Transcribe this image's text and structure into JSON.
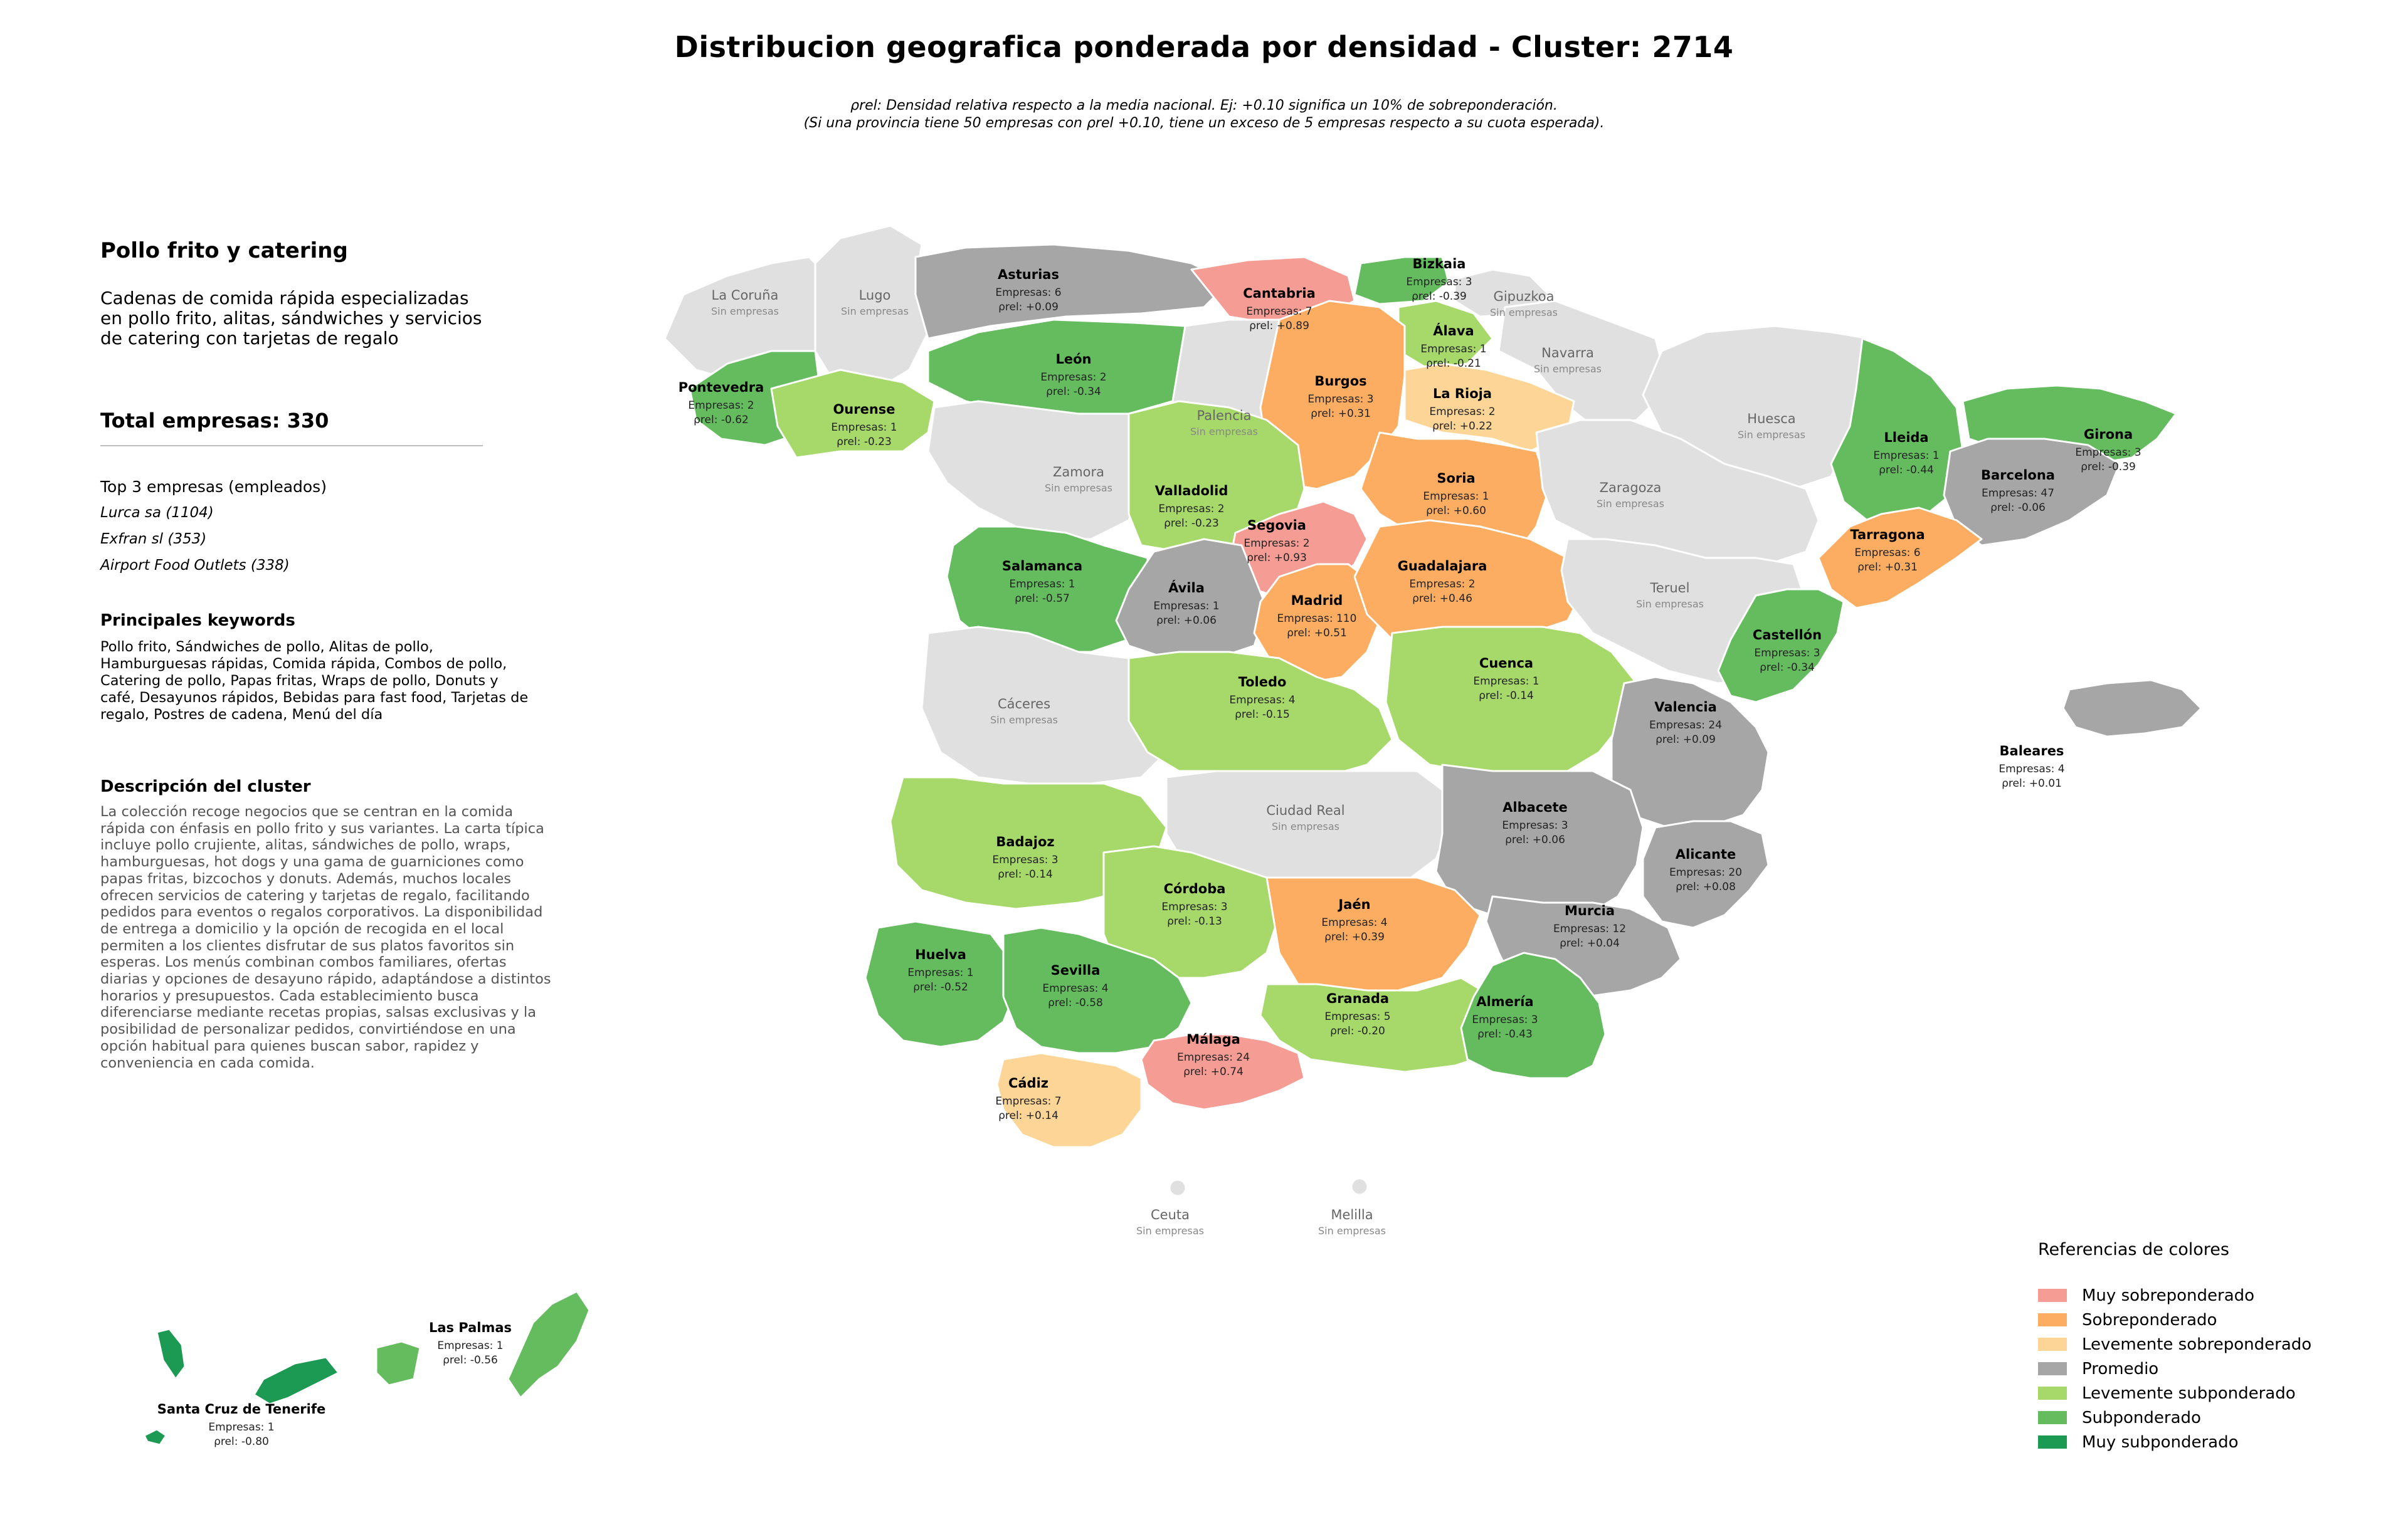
{
  "title": "Distribucion geografica ponderada por densidad - Cluster: 2714",
  "subtitle_line1": "ρrel: Densidad relativa respecto a la media nacional. Ej: +0.10 significa un 10% de sobreponderación.",
  "subtitle_line2": "(Si una provincia tiene 50 empresas con ρrel +0.10, tiene un exceso de 5 empresas respecto a su cuota esperada).",
  "panel": {
    "category": "Pollo frito y catering",
    "description": "Cadenas de comida rápida especializadas en pollo frito, alitas, sándwiches y servicios de catering con tarjetas de regalo",
    "total": "Total empresas: 330",
    "top3_heading": "Top 3 empresas (empleados)",
    "top3": [
      "Lurca sa (1104)",
      "Exfran sl (353)",
      "Airport Food Outlets (338)"
    ],
    "keywords_heading": "Principales keywords",
    "keywords": "Pollo frito, Sándwiches de pollo, Alitas de pollo, Hamburguesas rápidas, Comida rápida, Combos de pollo, Catering de pollo, Papas fritas, Wraps de pollo, Donuts y café, Desayunos rápidos, Bebidas para fast food, Tarjetas de regalo, Postres de cadena, Menú del día",
    "cluster_desc_heading": "Descripción del cluster",
    "cluster_desc": "La colección recoge negocios que se centran en la comida rápida con énfasis en pollo frito y sus variantes. La carta típica incluye pollo crujiente, alitas, sándwiches de pollo, wraps, hamburguesas, hot dogs y una gama de guarniciones como papas fritas, bizcochos y donuts. Además, muchos locales ofrecen servicios de catering y tarjetas de regalo, facilitando pedidos para eventos o regalos corporativos. La disponibilidad de entrega a domicilio y la opción de recogida en el local permiten a los clientes disfrutar de sus platos favoritos sin esperas. Los menús combinan combos familiares, ofertas diarias y opciones de desayuno rápido, adaptándose a distintos horarios y presupuestos. Cada establecimiento busca diferenciarse mediante recetas propias, salsas exclusivas y la posibilidad de personalizar pedidos, convirtiéndose en una opción habitual para quienes buscan sabor, rapidez y conveniencia en cada comida."
  },
  "colors": {
    "muy_sobre": "#f59d94",
    "sobre": "#fcad61",
    "lev_sobre": "#fdd597",
    "promedio": "#a6a6a6",
    "lev_sub": "#a7d86a",
    "sub": "#64bc5f",
    "muy_sub": "#1c9a54",
    "sin": "#e0e0e0"
  },
  "legend": {
    "title": "Referencias de colores",
    "items": [
      {
        "key": "muy_sobre",
        "label": "Muy sobreponderado"
      },
      {
        "key": "sobre",
        "label": "Sobreponderado"
      },
      {
        "key": "lev_sobre",
        "label": "Levemente sobreponderado"
      },
      {
        "key": "promedio",
        "label": "Promedio"
      },
      {
        "key": "lev_sub",
        "label": "Levemente subponderado"
      },
      {
        "key": "sub",
        "label": "Subponderado"
      },
      {
        "key": "muy_sub",
        "label": "Muy subponderado"
      }
    ]
  },
  "empresas_prefix": "Empresas: ",
  "rho_prefix": "ρrel: ",
  "sin_empresas": "Sin empresas",
  "provinces": [
    {
      "name": "La Coruña",
      "cat": "sin"
    },
    {
      "name": "Lugo",
      "cat": "sin"
    },
    {
      "name": "Asturias",
      "cat": "promedio",
      "n": 6,
      "rho": "+0.09"
    },
    {
      "name": "Cantabria",
      "cat": "muy_sobre",
      "n": 7,
      "rho": "+0.89"
    },
    {
      "name": "Bizkaia",
      "cat": "sub",
      "n": 3,
      "rho": "-0.39"
    },
    {
      "name": "Gipuzkoa",
      "cat": "sin"
    },
    {
      "name": "Álava",
      "cat": "lev_sub",
      "n": 1,
      "rho": "-0.21"
    },
    {
      "name": "Navarra",
      "cat": "sin"
    },
    {
      "name": "Pontevedra",
      "cat": "sub",
      "n": 2,
      "rho": "-0.62"
    },
    {
      "name": "Ourense",
      "cat": "lev_sub",
      "n": 1,
      "rho": "-0.23"
    },
    {
      "name": "León",
      "cat": "sub",
      "n": 2,
      "rho": "-0.34"
    },
    {
      "name": "Palencia",
      "cat": "sin"
    },
    {
      "name": "Burgos",
      "cat": "sobre",
      "n": 3,
      "rho": "+0.31"
    },
    {
      "name": "La Rioja",
      "cat": "lev_sobre",
      "n": 2,
      "rho": "+0.22"
    },
    {
      "name": "Huesca",
      "cat": "sin"
    },
    {
      "name": "Lleida",
      "cat": "sub",
      "n": 1,
      "rho": "-0.44"
    },
    {
      "name": "Girona",
      "cat": "sub",
      "n": 3,
      "rho": "-0.39"
    },
    {
      "name": "Zamora",
      "cat": "sin"
    },
    {
      "name": "Valladolid",
      "cat": "lev_sub",
      "n": 2,
      "rho": "-0.23"
    },
    {
      "name": "Soria",
      "cat": "sobre",
      "n": 1,
      "rho": "+0.60"
    },
    {
      "name": "Zaragoza",
      "cat": "sin"
    },
    {
      "name": "Barcelona",
      "cat": "promedio",
      "n": 47,
      "rho": "-0.06"
    },
    {
      "name": "Tarragona",
      "cat": "sobre",
      "n": 6,
      "rho": "+0.31"
    },
    {
      "name": "Salamanca",
      "cat": "sub",
      "n": 1,
      "rho": "-0.57"
    },
    {
      "name": "Segovia",
      "cat": "muy_sobre",
      "n": 2,
      "rho": "+0.93"
    },
    {
      "name": "Ávila",
      "cat": "promedio",
      "n": 1,
      "rho": "+0.06"
    },
    {
      "name": "Madrid",
      "cat": "sobre",
      "n": 110,
      "rho": "+0.51"
    },
    {
      "name": "Guadalajara",
      "cat": "sobre",
      "n": 2,
      "rho": "+0.46"
    },
    {
      "name": "Teruel",
      "cat": "sin"
    },
    {
      "name": "Castellón",
      "cat": "sub",
      "n": 3,
      "rho": "-0.34"
    },
    {
      "name": "Cáceres",
      "cat": "sin"
    },
    {
      "name": "Toledo",
      "cat": "lev_sub",
      "n": 4,
      "rho": "-0.15"
    },
    {
      "name": "Cuenca",
      "cat": "lev_sub",
      "n": 1,
      "rho": "-0.14"
    },
    {
      "name": "Valencia",
      "cat": "promedio",
      "n": 24,
      "rho": "+0.09"
    },
    {
      "name": "Baleares",
      "cat": "promedio",
      "n": 4,
      "rho": "+0.01"
    },
    {
      "name": "Badajoz",
      "cat": "lev_sub",
      "n": 3,
      "rho": "-0.14"
    },
    {
      "name": "Ciudad Real",
      "cat": "sin"
    },
    {
      "name": "Albacete",
      "cat": "promedio",
      "n": 3,
      "rho": "+0.06"
    },
    {
      "name": "Alicante",
      "cat": "promedio",
      "n": 20,
      "rho": "+0.08"
    },
    {
      "name": "Córdoba",
      "cat": "lev_sub",
      "n": 3,
      "rho": "-0.13"
    },
    {
      "name": "Jaén",
      "cat": "sobre",
      "n": 4,
      "rho": "+0.39"
    },
    {
      "name": "Murcia",
      "cat": "promedio",
      "n": 12,
      "rho": "+0.04"
    },
    {
      "name": "Huelva",
      "cat": "sub",
      "n": 1,
      "rho": "-0.52"
    },
    {
      "name": "Sevilla",
      "cat": "sub",
      "n": 4,
      "rho": "-0.58"
    },
    {
      "name": "Granada",
      "cat": "lev_sub",
      "n": 5,
      "rho": "-0.20"
    },
    {
      "name": "Almería",
      "cat": "sub",
      "n": 3,
      "rho": "-0.43"
    },
    {
      "name": "Málaga",
      "cat": "muy_sobre",
      "n": 24,
      "rho": "+0.74"
    },
    {
      "name": "Cádiz",
      "cat": "lev_sobre",
      "n": 7,
      "rho": "+0.14"
    },
    {
      "name": "Ceuta",
      "cat": "sin"
    },
    {
      "name": "Melilla",
      "cat": "sin"
    },
    {
      "name": "Las Palmas",
      "cat": "sub",
      "n": 1,
      "rho": "-0.56"
    },
    {
      "name": "Santa Cruz de Tenerife",
      "cat": "muy_sub",
      "n": 1,
      "rho": "-0.80"
    }
  ]
}
